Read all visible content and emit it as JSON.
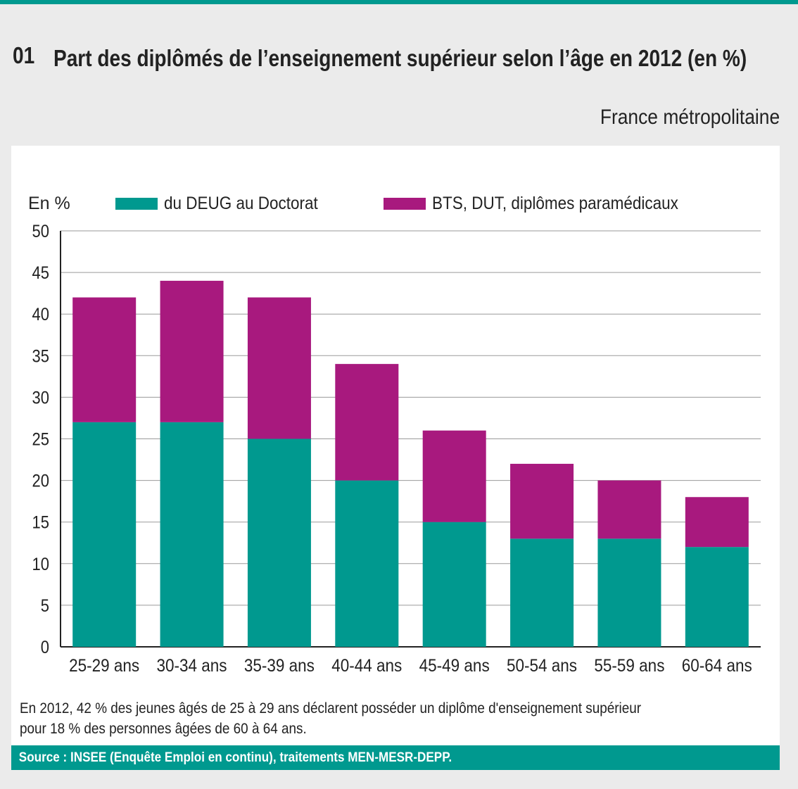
{
  "header": {
    "number": "01",
    "title": "Part des diplômés de l’enseignement supérieur selon l’âge en 2012 (en %)",
    "geography": "France métropolitaine"
  },
  "chart_data": {
    "type": "bar",
    "stacked": true,
    "title": "Part des diplômés de l’enseignement supérieur selon l’âge en 2012 (en %)",
    "ylabel": "En %",
    "xlabel": "",
    "ylim": [
      0,
      50
    ],
    "yticks": [
      0,
      5,
      10,
      15,
      20,
      25,
      30,
      35,
      40,
      45,
      50
    ],
    "grid": true,
    "legend_position": "top",
    "categories": [
      "25-29 ans",
      "30-34 ans",
      "35-39 ans",
      "40-44 ans",
      "45-49 ans",
      "50-54 ans",
      "55-59 ans",
      "60-64 ans"
    ],
    "series": [
      {
        "name": "du DEUG au Doctorat",
        "color": "#00998f",
        "values": [
          27,
          27,
          25,
          20,
          15,
          13,
          13,
          12
        ]
      },
      {
        "name": "BTS, DUT, diplômes paramédicaux",
        "color": "#a8197e",
        "values": [
          15,
          17,
          17,
          14,
          11,
          9,
          7,
          6
        ]
      }
    ]
  },
  "note": [
    "En 2012, 42 % des jeunes âgés de 25 à 29 ans déclarent posséder un diplôme d'enseignement supérieur",
    "pour 18 % des personnes âgées de 60 à 64 ans."
  ],
  "source": "Source : INSEE (Enquête Emploi en continu), traitements MEN-MESR-DEPP."
}
